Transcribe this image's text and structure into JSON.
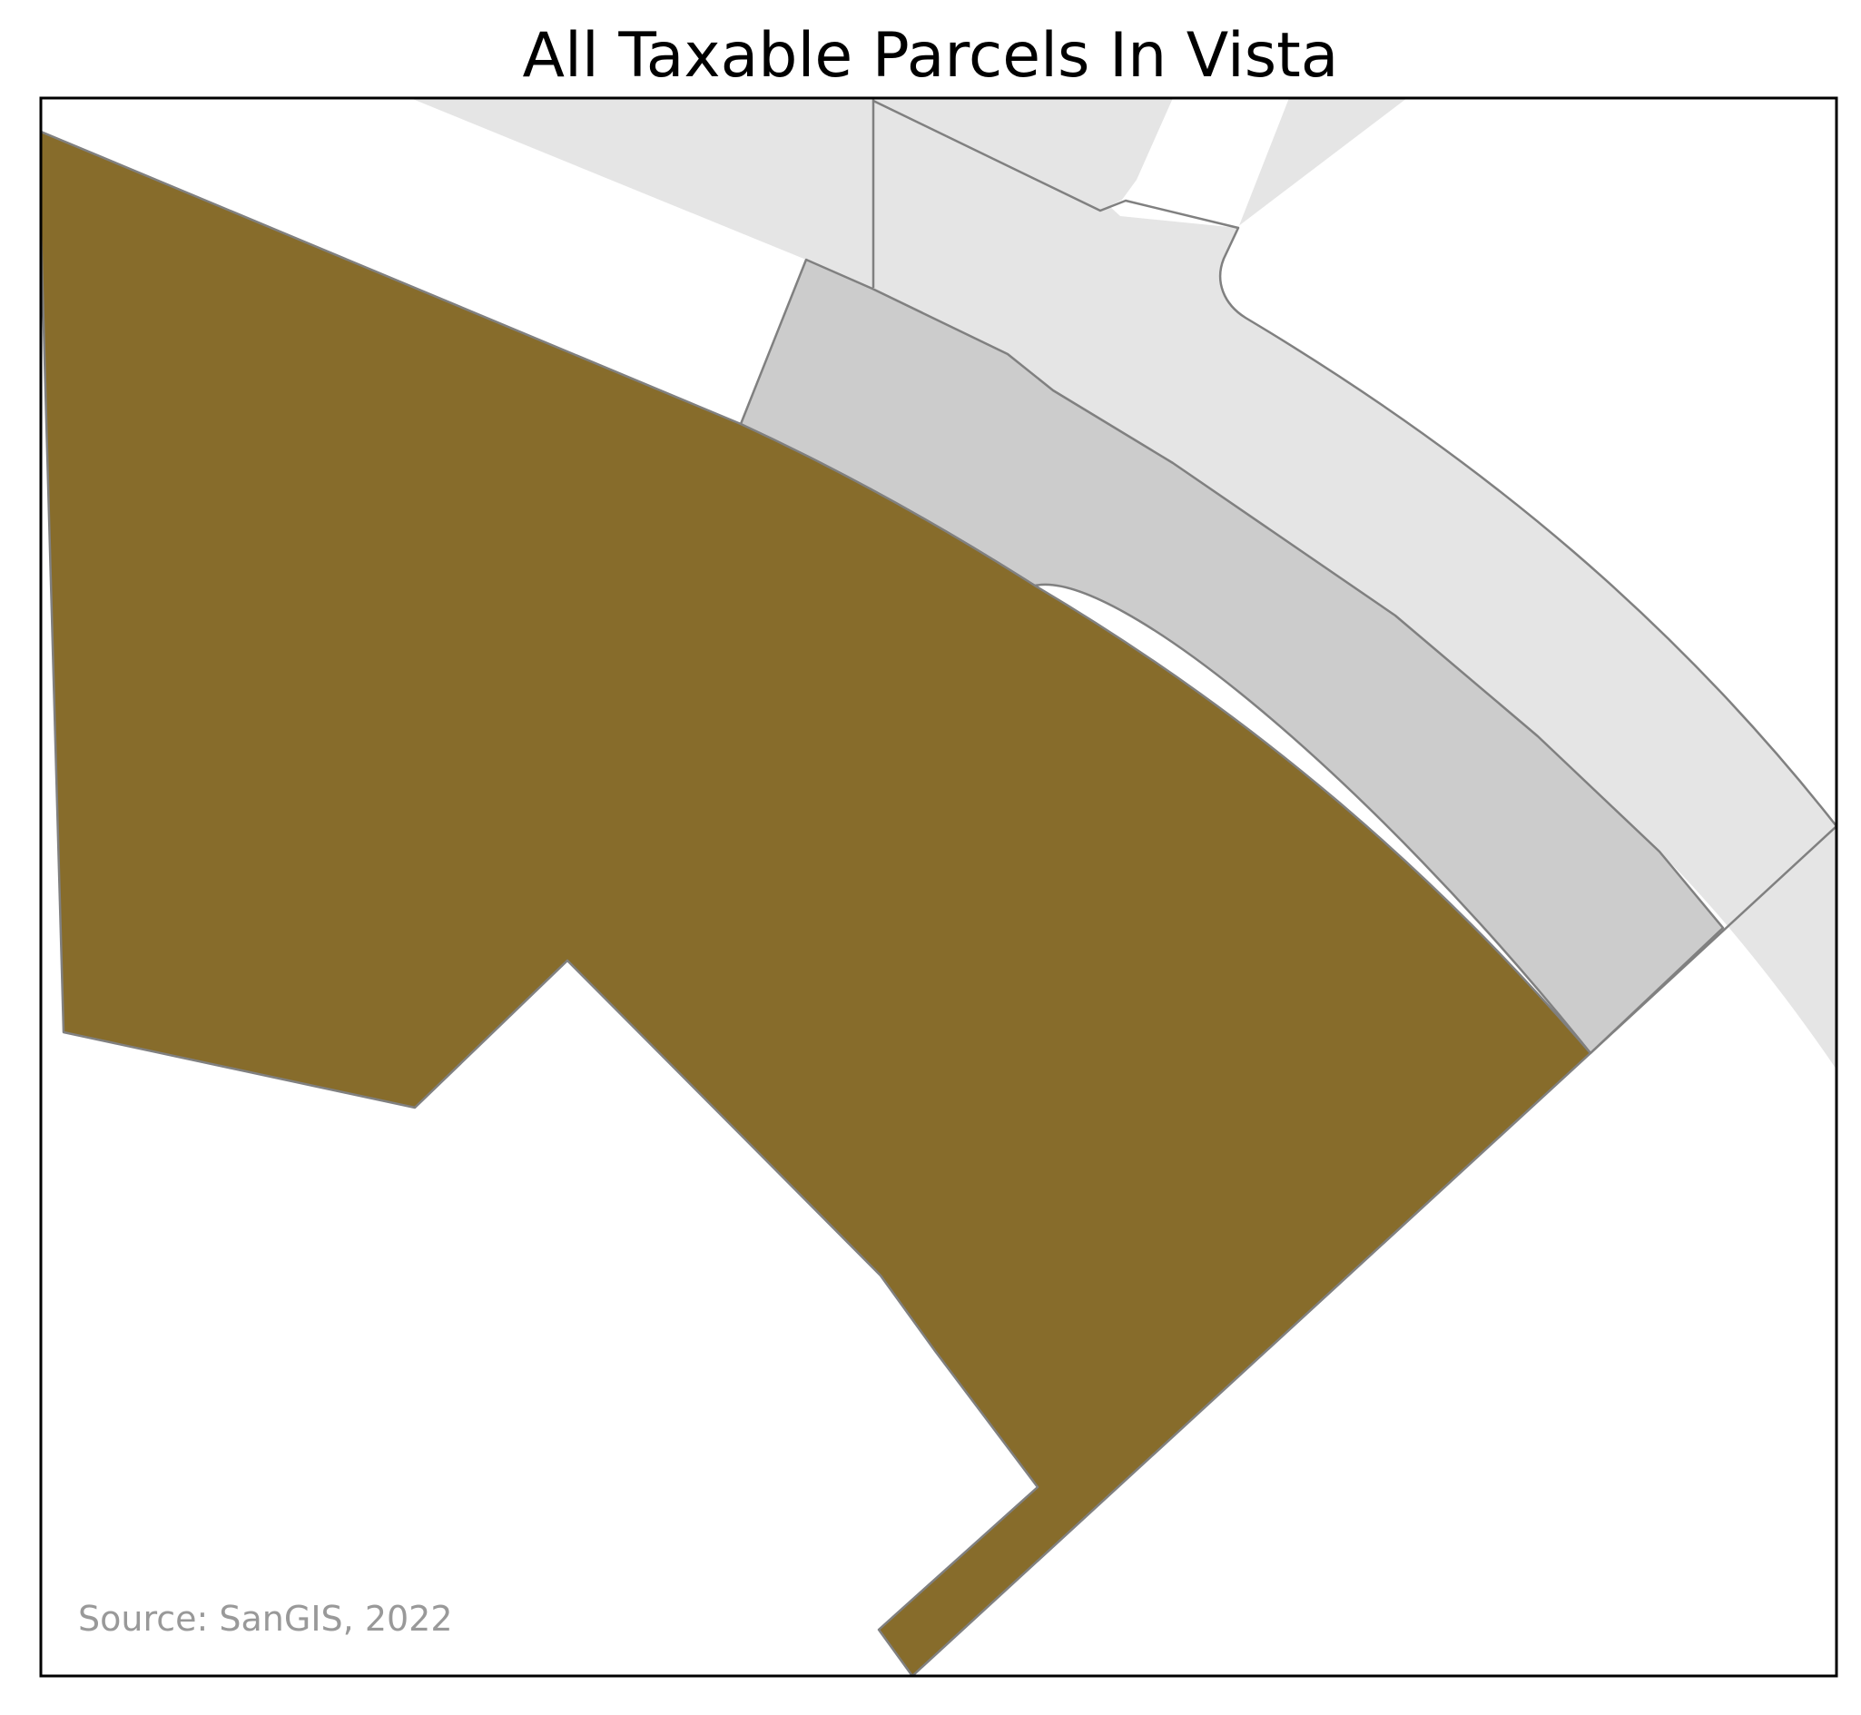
{
  "map": {
    "title": "All Taxable Parcels In Vista",
    "source": "Source: SanGIS, 2022",
    "colors": {
      "highlighted_parcel": "#876c2b",
      "adjacent_parcel": "#cccccc",
      "road_rightofway": "#e5e5e5",
      "parcel_outline": "#808080",
      "frame": "#000000",
      "source_text": "#999999"
    },
    "layers": [
      {
        "name": "road-rightofway",
        "fill_key": "road_rightofway"
      },
      {
        "name": "adjacent-parcel",
        "fill_key": "adjacent_parcel"
      },
      {
        "name": "highlighted-parcel",
        "fill_key": "highlighted_parcel"
      }
    ]
  }
}
